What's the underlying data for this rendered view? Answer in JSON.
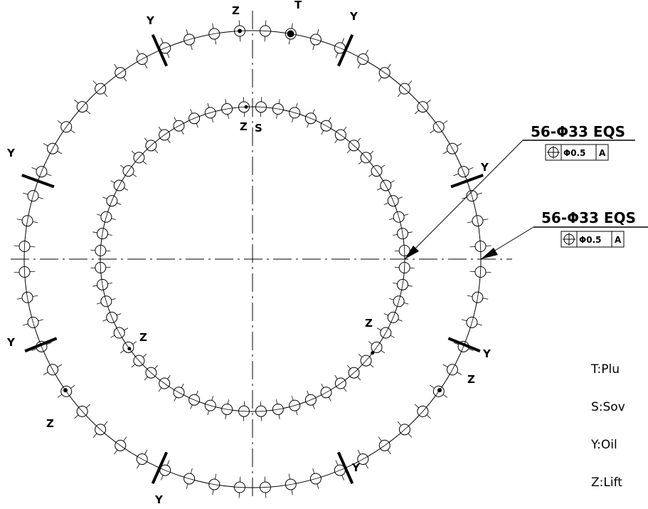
{
  "callouts": [
    {
      "title": "56-Φ33  EQS",
      "tolerance": "Φ0.5",
      "datum": "A"
    },
    {
      "title": "56-Φ33  EQS",
      "tolerance": "Φ0.5",
      "datum": "A"
    }
  ],
  "labels": {
    "Y": "Y",
    "Z": "Z",
    "T": "T",
    "S": "S"
  },
  "legend": [
    "T:Plu",
    "S:Sov",
    "Y:Oil",
    "Z:Lift"
  ],
  "icons": {
    "position": "position-tolerance-icon"
  }
}
